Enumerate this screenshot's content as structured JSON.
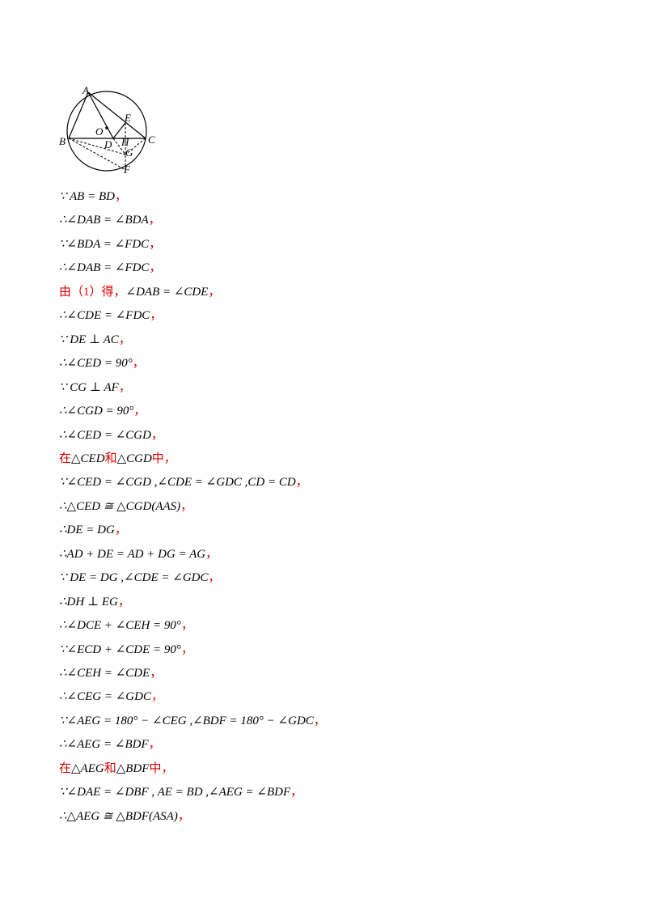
{
  "figure": {
    "labels": [
      "A",
      "O",
      "E",
      "B",
      "D",
      "H",
      "C",
      "G",
      "F"
    ]
  },
  "lines": [
    [
      {
        "text": "∵ AB = BD"
      },
      {
        "text": "，",
        "color": "#e00000"
      }
    ],
    [
      {
        "text": "∴∠DAB = ∠BDA"
      },
      {
        "text": "，",
        "color": "#e00000"
      }
    ],
    [
      {
        "text": "∵∠BDA = ∠FDC"
      },
      {
        "text": "，",
        "color": "#e00000"
      }
    ],
    [
      {
        "text": "∴∠DAB = ∠FDC"
      },
      {
        "text": "，",
        "color": "#e00000"
      }
    ],
    [
      {
        "text": "由（1）得，",
        "color": "#e00000"
      },
      {
        "text": "∠DAB = ∠CDE"
      },
      {
        "text": "，",
        "color": "#e00000"
      }
    ],
    [
      {
        "text": "∴∠CDE = ∠FDC"
      },
      {
        "text": "，",
        "color": "#e00000"
      }
    ],
    [
      {
        "text": "∵ DE ⊥ AC"
      },
      {
        "text": "，",
        "color": "#e00000"
      }
    ],
    [
      {
        "text": "∴∠CED = 90°"
      },
      {
        "text": "，",
        "color": "#e00000"
      }
    ],
    [
      {
        "text": "∵ CG ⊥ AF"
      },
      {
        "text": "，",
        "color": "#e00000"
      }
    ],
    [
      {
        "text": "∴∠CGD = 90°"
      },
      {
        "text": "，",
        "color": "#e00000"
      }
    ],
    [
      {
        "text": "∴∠CED = ∠CGD"
      },
      {
        "text": "，",
        "color": "#e00000"
      }
    ],
    [
      {
        "text": "在",
        "color": "#e00000"
      },
      {
        "text": "△CED"
      },
      {
        "text": "和",
        "color": "#e00000"
      },
      {
        "text": "△CGD"
      },
      {
        "text": "中，",
        "color": "#e00000"
      }
    ],
    [
      {
        "text": "∵∠CED = ∠CGD ,∠CDE = ∠GDC ,CD = CD"
      },
      {
        "text": "，",
        "color": "#e00000"
      }
    ],
    [
      {
        "text": "∴△CED ≅ △CGD(AAS)"
      },
      {
        "text": "，",
        "color": "#e00000"
      }
    ],
    [
      {
        "text": "∴DE = DG"
      },
      {
        "text": "，",
        "color": "#e00000"
      }
    ],
    [
      {
        "text": "∴AD + DE = AD + DG = AG"
      },
      {
        "text": "，",
        "color": "#e00000"
      }
    ],
    [
      {
        "text": "∵ DE = DG ,∠CDE = ∠GDC"
      },
      {
        "text": "，",
        "color": "#e00000"
      }
    ],
    [
      {
        "text": "∴DH ⊥ EG"
      },
      {
        "text": "，",
        "color": "#e00000"
      }
    ],
    [
      {
        "text": "∴∠DCE + ∠CEH = 90°"
      },
      {
        "text": "，",
        "color": "#e00000"
      }
    ],
    [
      {
        "text": "∵∠ECD + ∠CDE = 90°"
      },
      {
        "text": "，",
        "color": "#e00000"
      }
    ],
    [
      {
        "text": "∴∠CEH = ∠CDE"
      },
      {
        "text": "，",
        "color": "#e00000"
      }
    ],
    [
      {
        "text": "∴∠CEG = ∠GDC"
      },
      {
        "text": "，",
        "color": "#e00000"
      }
    ],
    [
      {
        "text": "∵∠AEG = 180° − ∠CEG ,∠BDF = 180° − ∠GDC"
      },
      {
        "text": "，",
        "color": "#e00000"
      }
    ],
    [
      {
        "text": "∴∠AEG = ∠BDF"
      },
      {
        "text": "，",
        "color": "#e00000"
      }
    ],
    [
      {
        "text": "在",
        "color": "#e00000"
      },
      {
        "text": "△AEG"
      },
      {
        "text": "和",
        "color": "#e00000"
      },
      {
        "text": "△BDF"
      },
      {
        "text": "中，",
        "color": "#e00000"
      }
    ],
    [
      {
        "text": "∵∠DAE = ∠DBF , AE = BD ,∠AEG = ∠BDF"
      },
      {
        "text": "，",
        "color": "#e00000"
      }
    ],
    [
      {
        "text": "∴△AEG ≅ △BDF(ASA)"
      },
      {
        "text": "，",
        "color": "#e00000"
      }
    ]
  ]
}
